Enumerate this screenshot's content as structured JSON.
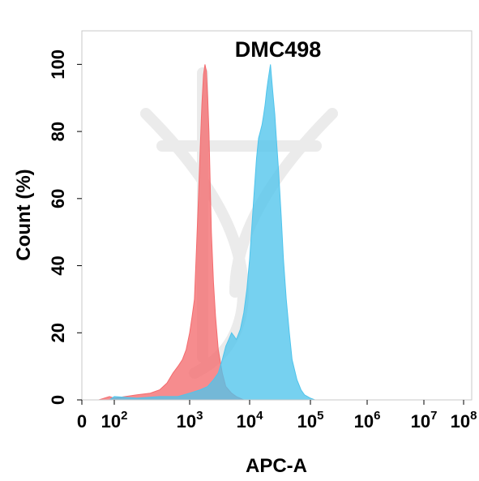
{
  "chart_data": {
    "type": "area",
    "title": "DMC498",
    "xlabel": "APC-A",
    "ylabel": "Count  (%)",
    "x_scale": "biexponential",
    "xlim": [
      0,
      100000000
    ],
    "ylim": [
      0,
      110
    ],
    "yticks": [
      0,
      20,
      40,
      60,
      80,
      100
    ],
    "xticks": [
      {
        "value": 0,
        "base": "0",
        "exp": ""
      },
      {
        "value": 100,
        "base": "10",
        "exp": "2"
      },
      {
        "value": 1000,
        "base": "10",
        "exp": "3"
      },
      {
        "value": 10000,
        "base": "10",
        "exp": "4"
      },
      {
        "value": 100000,
        "base": "10",
        "exp": "5"
      },
      {
        "value": 1000000,
        "base": "10",
        "exp": "6"
      },
      {
        "value": 10000000,
        "base": "10",
        "exp": "7"
      },
      {
        "value": 100000000,
        "base": "10",
        "exp": "8"
      }
    ],
    "grid": false,
    "legend": "none",
    "series": [
      {
        "color": "#f46b6e",
        "x": [
          10,
          50,
          100,
          200,
          300,
          400,
          500,
          600,
          700,
          800,
          900,
          1000,
          1100,
          1200,
          1300,
          1400,
          1500,
          1600,
          1700,
          1800,
          1900,
          2000,
          2100,
          2200,
          2300,
          2500,
          2700,
          3000,
          3500,
          4000,
          5000,
          6000,
          8000
        ],
        "y": [
          0,
          1,
          0.5,
          1.5,
          2,
          3,
          5,
          8,
          10,
          12,
          15,
          20,
          25,
          30,
          45,
          60,
          75,
          88,
          97,
          100,
          98,
          90,
          80,
          65,
          50,
          35,
          25,
          15,
          8,
          4,
          2,
          1,
          0
        ]
      },
      {
        "color": "#4fc4ec",
        "x": [
          50,
          100,
          200,
          400,
          700,
          1000,
          1500,
          2000,
          2500,
          3000,
          3500,
          4000,
          4500,
          5000,
          5500,
          6000,
          7000,
          8000,
          9000,
          10000,
          11000,
          12000,
          13000,
          14000,
          15000,
          16000,
          17000,
          18000,
          19000,
          20000,
          22000,
          24000,
          26000,
          28000,
          30000,
          33000,
          36000,
          40000,
          45000,
          50000,
          60000,
          70000,
          80000,
          100000,
          120000
        ],
        "y": [
          0,
          1,
          0.5,
          1,
          1,
          2,
          3,
          4,
          6,
          8,
          12,
          16,
          18,
          20,
          19,
          18,
          21,
          26,
          33,
          42,
          53,
          63,
          72,
          78,
          80,
          82,
          85,
          88,
          92,
          95,
          100,
          92,
          85,
          76,
          68,
          55,
          42,
          30,
          20,
          12,
          6,
          3,
          1.5,
          0.5,
          0
        ]
      }
    ]
  }
}
